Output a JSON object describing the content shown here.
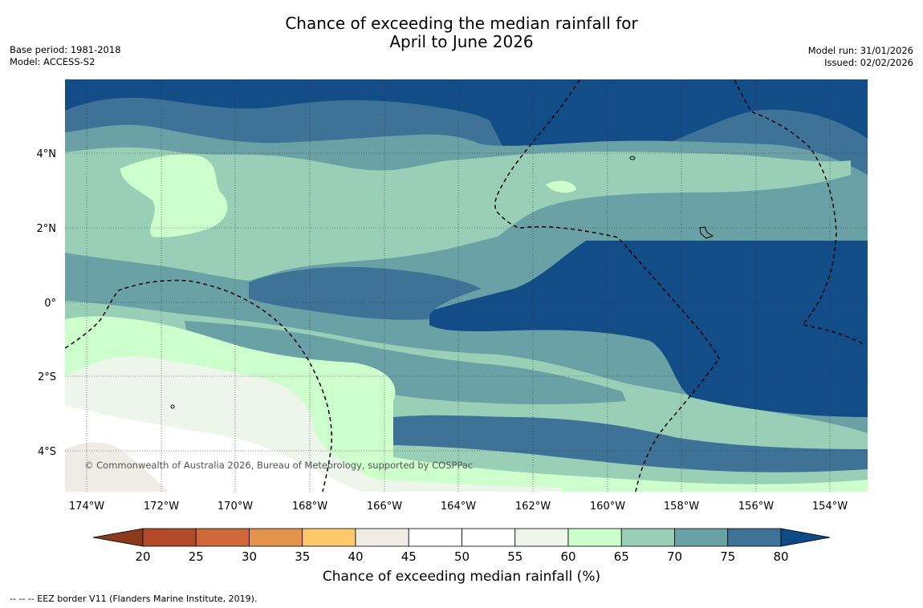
{
  "header": {
    "title_line1": "Chance of exceeding the median rainfall for",
    "title_line2": "April to June 2026",
    "base_period": "Base period: 1981-2018",
    "model": "Model: ACCESS-S2",
    "model_run": "Model run: 31/01/2026",
    "issued": "Issued: 02/02/2026"
  },
  "map": {
    "lon_ticks": [
      "174°W",
      "172°W",
      "170°W",
      "168°W",
      "166°W",
      "164°W",
      "162°W",
      "160°W",
      "158°W",
      "156°W",
      "154°W"
    ],
    "lat_ticks": [
      "4°N",
      "2°N",
      "0°",
      "2°S",
      "4°S"
    ],
    "copyright": "© Commonwealth of Australia 2026, Bureau of Meteorology, supported by COSPPac"
  },
  "colorbar": {
    "label": "Chance of exceeding median rainfall (%)",
    "ticks": [
      "20",
      "25",
      "30",
      "35",
      "40",
      "45",
      "50",
      "55",
      "60",
      "65",
      "70",
      "75",
      "80"
    ],
    "under_color": "#8c3a1e",
    "over_color": "#0e4a86",
    "colors": [
      "#b24a2a",
      "#cf6838",
      "#e3924a",
      "#fdc96a",
      "#efebe5",
      "#ffffff",
      "#ffffff",
      "#eef6ec",
      "#ccffcc",
      "#99cfb6",
      "#6aa1a6",
      "#3e7397"
    ]
  },
  "palette": {
    "c40": "#efebe5",
    "c45": "#ffffff",
    "c55": "#eef6ec",
    "c60": "#ccffcc",
    "c65": "#99cfb6",
    "c70": "#6aa1a6",
    "c75": "#3e7397",
    "c80": "#124d88"
  },
  "footnote": "--  --  -- EEZ border V11 (Flanders Marine Institute, 2019)."
}
